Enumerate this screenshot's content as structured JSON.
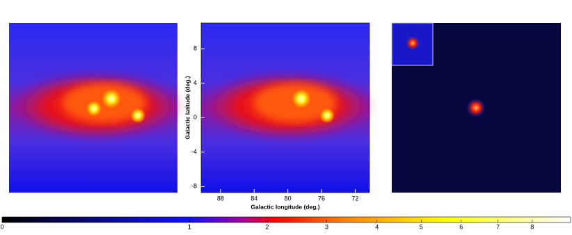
{
  "chart_data": {
    "type": "image",
    "xlabel": "Galactic longitude (deg.)",
    "ylabel": "Galactic latitude (deg.)",
    "xlim": [
      90.3,
      70.3
    ],
    "xticks": [
      88,
      84,
      80,
      76,
      72
    ],
    "ylim": [
      -8.7,
      11
    ],
    "yticks": [
      8,
      4,
      0,
      -4,
      -8
    ],
    "colorbar": {
      "scale": "sqrt",
      "lim": [
        0,
        9.2
      ],
      "ticks": [
        0,
        1,
        2,
        3,
        4,
        5,
        6,
        7,
        8
      ]
    }
  }
}
